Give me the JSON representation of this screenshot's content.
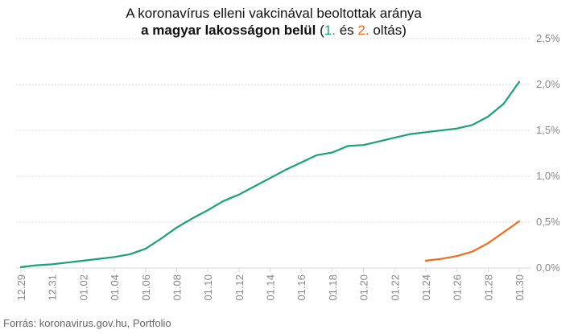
{
  "title_line1": "A koronavírus elleni vakcinával beoltottak aránya",
  "title_line2_main": "a magyar lakosságon belül",
  "title_line2_open": "(",
  "title_line2_first": "1.",
  "title_line2_and": "és",
  "title_line2_second": "2.",
  "title_line2_end": "oltás)",
  "source": "Forrás: koronavirus.gov.hu, Portfolio",
  "colors": {
    "first_dose": "#1aa07a",
    "second_dose": "#f26a1b",
    "grid": "#d9d9d9",
    "tick_text": "#888888"
  },
  "chart_data": {
    "type": "line",
    "x": [
      "12.29",
      "12.30",
      "12.31",
      "01.01",
      "01.02",
      "01.03",
      "01.04",
      "01.05",
      "01.06",
      "01.07",
      "01.08",
      "01.09",
      "01.10",
      "01.11",
      "01.12",
      "01.13",
      "01.14",
      "01.15",
      "01.16",
      "01.17",
      "01.18",
      "01.19",
      "01.20",
      "01.21",
      "01.22",
      "01.23",
      "01.24",
      "01.25",
      "01.26",
      "01.27",
      "01.28",
      "01.29",
      "01.30"
    ],
    "x_tick_labels": [
      "12.29",
      "12.31",
      "01.02",
      "01.04",
      "01.06",
      "01.08",
      "01.10",
      "01.12",
      "01.14",
      "01.16",
      "01.18",
      "01.20",
      "01.22",
      "01.24",
      "01.26",
      "01.28",
      "01.30"
    ],
    "series": [
      {
        "values": [
          0.01,
          0.03,
          0.04,
          0.06,
          0.08,
          0.1,
          0.12,
          0.15,
          0.21,
          0.32,
          0.44,
          0.54,
          0.63,
          0.73,
          0.8,
          0.89,
          0.98,
          1.07,
          1.15,
          1.23,
          1.26,
          1.33,
          1.34,
          1.38,
          1.42,
          1.46,
          1.48,
          1.5,
          1.52,
          1.56,
          1.65,
          1.79,
          2.03
        ]
      },
      {
        "values": [
          null,
          null,
          null,
          null,
          null,
          null,
          null,
          null,
          null,
          null,
          null,
          null,
          null,
          null,
          null,
          null,
          null,
          null,
          null,
          null,
          null,
          null,
          null,
          null,
          null,
          null,
          0.08,
          0.1,
          0.13,
          0.18,
          0.27,
          0.39,
          0.51
        ]
      }
    ],
    "y_ticks": [
      "0,0%",
      "0,5%",
      "1,0%",
      "1,5%",
      "2,0%",
      "2,5%"
    ],
    "ylim": [
      0,
      2.5
    ],
    "y_axis_side": "right",
    "grid": true
  }
}
